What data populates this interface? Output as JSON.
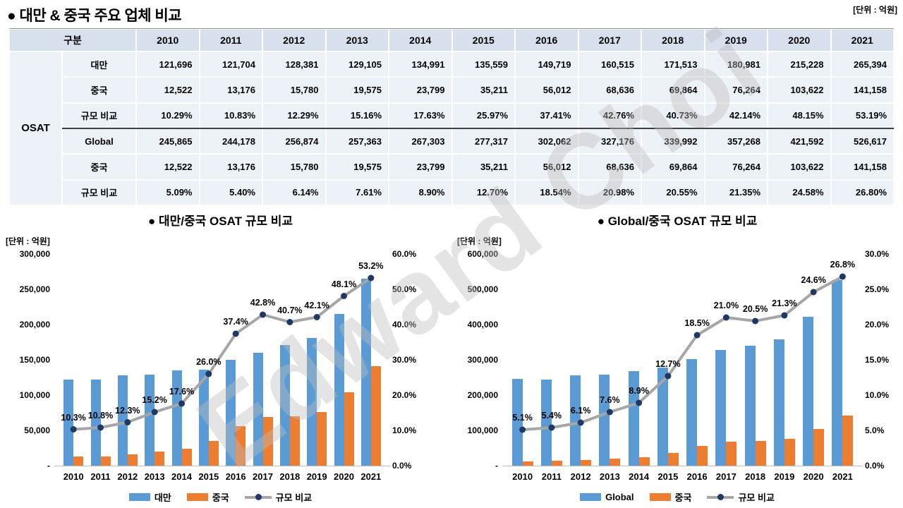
{
  "page": {
    "title": "● 대만 & 중국 주요 업체 비교",
    "unit_label": "[단위 : 억원]",
    "watermark": "Edward Choi"
  },
  "colors": {
    "bar_blue": "#5b9bd5",
    "bar_orange": "#ed7d31",
    "line_gray": "#a6a6a6",
    "marker_navy": "#1f3864",
    "table_header_bg": "#d8e0ee",
    "table_body_bg": "#edf1f8"
  },
  "table": {
    "corner_label": "구분",
    "group_label": "OSAT",
    "years": [
      "2010",
      "2011",
      "2012",
      "2013",
      "2014",
      "2015",
      "2016",
      "2017",
      "2018",
      "2019",
      "2020",
      "2021"
    ],
    "sections": [
      {
        "rows": [
          {
            "label": "대만",
            "values": [
              "121,696",
              "121,704",
              "128,381",
              "129,105",
              "134,991",
              "135,559",
              "149,719",
              "160,515",
              "171,513",
              "180,981",
              "215,228",
              "265,394"
            ]
          },
          {
            "label": "중국",
            "values": [
              "12,522",
              "13,176",
              "15,780",
              "19,575",
              "23,799",
              "35,211",
              "56,012",
              "68,636",
              "69,864",
              "76,264",
              "103,622",
              "141,158"
            ]
          },
          {
            "label": "규모 비교",
            "values": [
              "10.29%",
              "10.83%",
              "12.29%",
              "15.16%",
              "17.63%",
              "25.97%",
              "37.41%",
              "42.76%",
              "40.73%",
              "42.14%",
              "48.15%",
              "53.19%"
            ]
          }
        ]
      },
      {
        "rows": [
          {
            "label": "Global",
            "values": [
              "245,865",
              "244,178",
              "256,874",
              "257,363",
              "267,303",
              "277,317",
              "302,062",
              "327,176",
              "339,992",
              "357,268",
              "421,592",
              "526,617"
            ]
          },
          {
            "label": "중국",
            "values": [
              "12,522",
              "13,176",
              "15,780",
              "19,575",
              "23,799",
              "35,211",
              "56,012",
              "68,636",
              "69,864",
              "76,264",
              "103,622",
              "141,158"
            ]
          },
          {
            "label": "규모 비교",
            "values": [
              "5.09%",
              "5.40%",
              "6.14%",
              "7.61%",
              "8.90%",
              "12.70%",
              "18.54%",
              "20.98%",
              "20.55%",
              "21.35%",
              "24.58%",
              "26.80%"
            ]
          }
        ]
      }
    ]
  },
  "chart_data": [
    {
      "type": "bar",
      "title": "● 대만/중국 OSAT 규모 비교",
      "unit_label": "[단위 : 억원]",
      "categories": [
        "2010",
        "2011",
        "2012",
        "2013",
        "2014",
        "2015",
        "2016",
        "2017",
        "2018",
        "2019",
        "2020",
        "2021"
      ],
      "series": [
        {
          "name": "대만",
          "type": "bar",
          "color": "#5b9bd5",
          "values": [
            121696,
            121704,
            128381,
            129105,
            134991,
            135559,
            149719,
            160515,
            171513,
            180981,
            215228,
            265394
          ]
        },
        {
          "name": "중국",
          "type": "bar",
          "color": "#ed7d31",
          "values": [
            12522,
            13176,
            15780,
            19575,
            23799,
            35211,
            56012,
            68636,
            69864,
            76264,
            103622,
            141158
          ]
        },
        {
          "name": "규모 비교",
          "type": "line",
          "axis": "right",
          "color": "#a6a6a6",
          "marker_color": "#1f3864",
          "values": [
            10.3,
            10.8,
            12.3,
            15.2,
            17.6,
            26.0,
            37.4,
            42.8,
            40.7,
            42.1,
            48.1,
            53.2
          ]
        }
      ],
      "left_axis": {
        "max": 300000,
        "ticks": [
          "300,000",
          "250,000",
          "200,000",
          "150,000",
          "100,000",
          "50,000",
          "-"
        ]
      },
      "right_axis": {
        "max": 60,
        "ticks": [
          "60.0%",
          "50.0%",
          "40.0%",
          "30.0%",
          "20.0%",
          "10.0%",
          "0.0%"
        ]
      },
      "legend": [
        "대만",
        "중국",
        "규모 비교"
      ],
      "grid": false,
      "legend_position": "bottom"
    },
    {
      "type": "bar",
      "title": "● Global/중국 OSAT 규모 비교",
      "unit_label": "[단위 : 억원]",
      "categories": [
        "2010",
        "2011",
        "2012",
        "2013",
        "2014",
        "2015",
        "2016",
        "2017",
        "2018",
        "2019",
        "2020",
        "2021"
      ],
      "series": [
        {
          "name": "Global",
          "type": "bar",
          "color": "#5b9bd5",
          "values": [
            245865,
            244178,
            256874,
            257363,
            267303,
            277317,
            302062,
            327176,
            339992,
            357268,
            421592,
            526617
          ]
        },
        {
          "name": "중국",
          "type": "bar",
          "color": "#ed7d31",
          "values": [
            12522,
            13176,
            15780,
            19575,
            23799,
            35211,
            56012,
            68636,
            69864,
            76264,
            103622,
            141158
          ]
        },
        {
          "name": "규모 비교",
          "type": "line",
          "axis": "right",
          "color": "#a6a6a6",
          "marker_color": "#1f3864",
          "values": [
            5.1,
            5.4,
            6.1,
            7.6,
            8.9,
            12.7,
            18.5,
            21.0,
            20.5,
            21.3,
            24.6,
            26.8
          ]
        }
      ],
      "left_axis": {
        "max": 600000,
        "ticks": [
          "600,000",
          "500,000",
          "400,000",
          "300,000",
          "200,000",
          "100,000",
          "-"
        ]
      },
      "right_axis": {
        "max": 30,
        "ticks": [
          "30.0%",
          "25.0%",
          "20.0%",
          "15.0%",
          "10.0%",
          "5.0%",
          "0.0%"
        ]
      },
      "legend": [
        "Global",
        "중국",
        "규모 비교"
      ],
      "grid": false,
      "legend_position": "bottom"
    }
  ]
}
